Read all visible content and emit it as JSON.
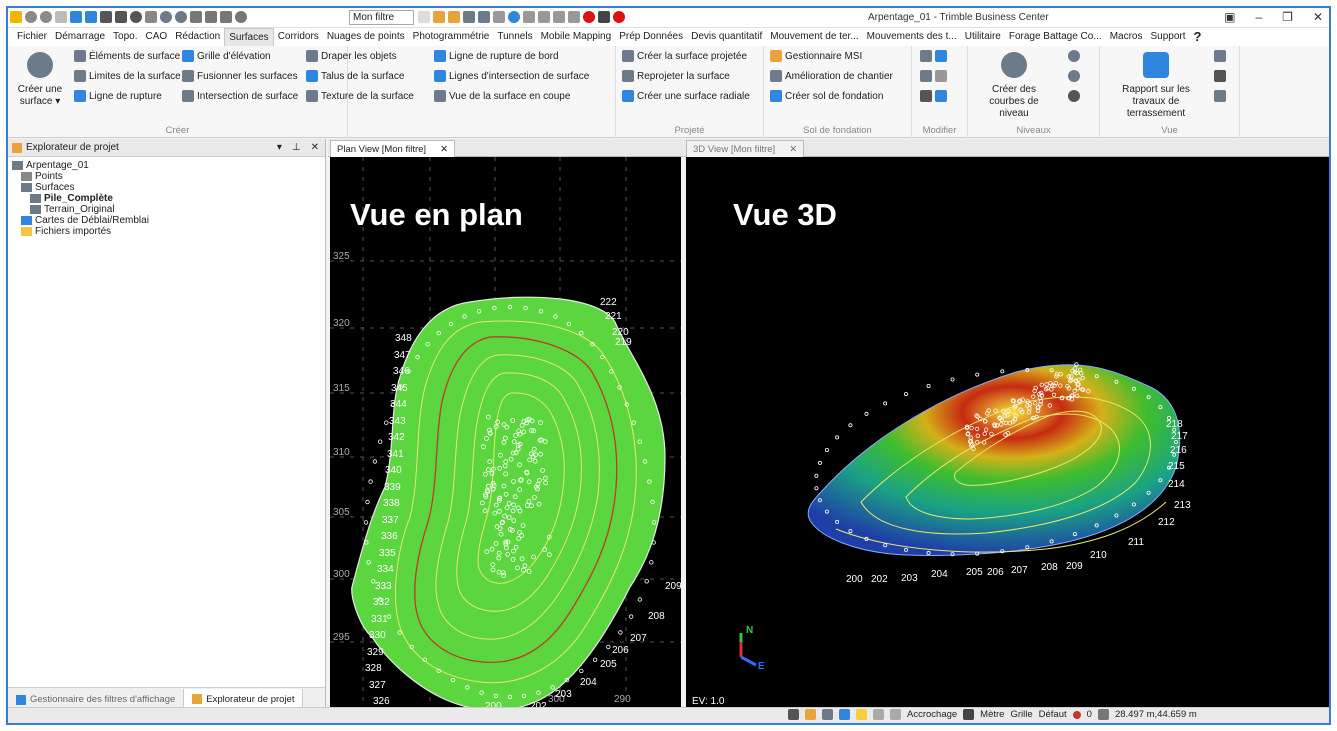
{
  "title_bar": {
    "app_title": "Arpentage_01 - Trimble Business Center",
    "filter_value": "Mon filtre"
  },
  "menu": [
    "Fichier",
    "Démarrage",
    "Topo.",
    "CAO",
    "Rédaction",
    "Surfaces",
    "Corridors",
    "Nuages de points",
    "Photogrammétrie",
    "Tunnels",
    "Mobile Mapping",
    "Prép Données",
    "Devis quantitatif",
    "Mouvement de ter...",
    "Mouvements des t...",
    "Utilitaire",
    "Forage Battage Co...",
    "Macros",
    "Support"
  ],
  "menu_active": "Surfaces",
  "ribbon": {
    "create_surface": "Créer une surface ▾",
    "create": {
      "label": "Créer",
      "items": [
        "Éléments de surface",
        "Grille d'élévation",
        "Draper les objets",
        "Ligne de rupture de bord",
        "Limites de la surface",
        "Fusionner les surfaces",
        "Talus de la surface",
        "Lignes d'intersection de surface",
        "Ligne de rupture",
        "Intersection de surface",
        "Texture de la surface",
        "Vue de la surface en coupe"
      ]
    },
    "projected": {
      "label": "Projeté",
      "items": [
        "Créer la surface projetée",
        "Reprojeter la surface",
        "Créer une surface radiale"
      ]
    },
    "foundation": {
      "label": "Sol de fondation",
      "items": [
        "Gestionnaire MSI",
        "Amélioration de chantier",
        "Créer sol de fondation"
      ]
    },
    "modify": {
      "label": "Modifier"
    },
    "levels": {
      "label": "Niveaux",
      "big_button": "Créer des courbes de niveau"
    },
    "view": {
      "label": "Vue",
      "big_button": "Rapport sur les travaux de terrassement"
    }
  },
  "explorer": {
    "title": "Explorateur de projet",
    "tree": [
      {
        "label": "Arpentage_01",
        "level": 0,
        "bold": false
      },
      {
        "label": "Points",
        "level": 1,
        "bold": false
      },
      {
        "label": "Surfaces",
        "level": 1,
        "bold": false
      },
      {
        "label": "Pile_Complète",
        "level": 2,
        "bold": true
      },
      {
        "label": "Terrain_Original",
        "level": 2,
        "bold": false
      },
      {
        "label": "Cartes de Déblai/Remblai",
        "level": 1,
        "bold": false
      },
      {
        "label": "Fichiers importés",
        "level": 1,
        "bold": false
      }
    ],
    "bottom_tabs": [
      "Gestionnaire des filtres d'affichage",
      "Explorateur de projet"
    ]
  },
  "views": {
    "plan_tab": "Plan View [Mon filtre]",
    "view3d_tab": "3D View [Mon filtre]",
    "plan_caption": "Vue en plan",
    "view3d_caption": "Vue 3D",
    "ev_label": "EV: 1.0",
    "plan_grid_y": [
      "325",
      "320",
      "315",
      "310",
      "305",
      "300",
      "295"
    ],
    "plan_grid_x": [
      "290",
      "300"
    ],
    "plan_contours_left": [
      "348",
      "347",
      "346",
      "345",
      "344",
      "343",
      "342",
      "341",
      "340",
      "339",
      "338",
      "337",
      "336",
      "335",
      "334",
      "333",
      "332",
      "331",
      "330",
      "329",
      "328",
      "327",
      "326",
      "325"
    ],
    "plan_contours_right": [
      "222",
      "221",
      "220",
      "219",
      "209",
      "208",
      "207",
      "206",
      "205",
      "204",
      "203",
      "202",
      "200"
    ],
    "view3d_contours": [
      "218",
      "217",
      "216",
      "215",
      "214",
      "213",
      "212",
      "211",
      "210",
      "209",
      "208",
      "207",
      "206",
      "205",
      "204",
      "203",
      "202",
      "200"
    ]
  },
  "statusbar": {
    "snap": "Accrochage",
    "unit": "Mètre",
    "grid": "Grille",
    "default": "Défaut",
    "count": "0",
    "coords": "28.497 m,44.659 m"
  },
  "colors": {
    "accent": "#3a7bd5",
    "surface_green": "#5bd63e",
    "contour_yellow": "#e8e86a",
    "contour_red": "#c0392b"
  }
}
